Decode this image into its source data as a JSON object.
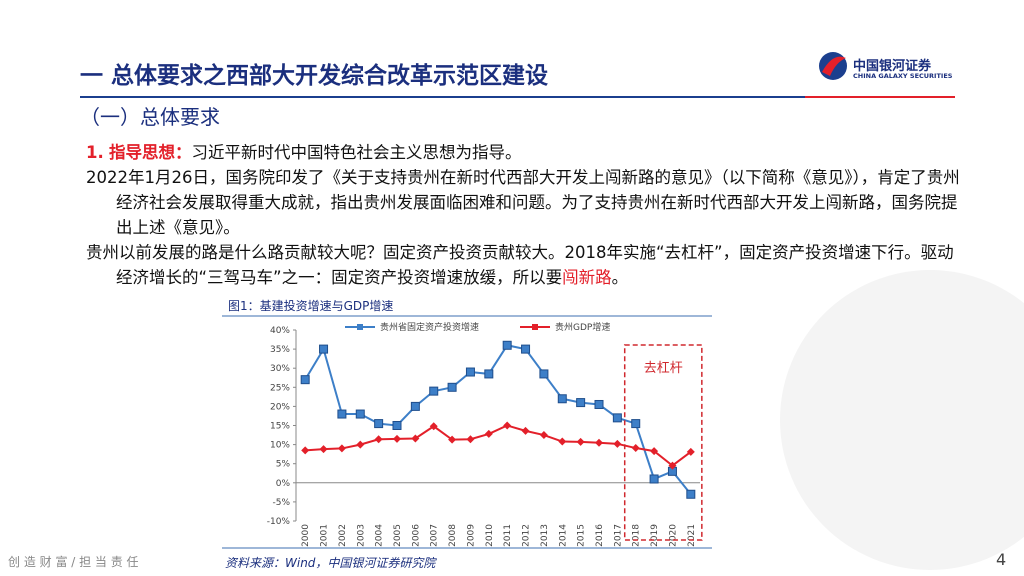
{
  "header": {
    "title": "一 总体要求之西部大开发综合改革示范区建设",
    "subtitle": "（一）总体要求"
  },
  "logo": {
    "name": "中国银河证券",
    "english": "CHINA GALAXY SECURITIES"
  },
  "points": [
    {
      "number": "1.",
      "label": "指导思想：",
      "text": "习近平新时代中国特色社会主义思想为指导。"
    },
    {
      "text": "2022年1月26日，国务院印发了《关于支持贵州在新时代西部大开发上闯新路的意见》（以下简称《意见》），肯定了贵州经济社会发展取得重大成就，指出贵州发展面临困难和问题。为了支持贵州在新时代西部大开发上闯新路，国务院提出上述《意见》。"
    },
    {
      "text": "贵州以前发展的路是什么路贡献较大呢？固定资产投资贡献较大。2018年实施“去杠杆”，固定资产投资增速下行。驱动经济增长的“三驾马车”之一：固定资产投资增速放缓，所以要",
      "highlight": "闯新路",
      "end": "。"
    }
  ],
  "footer": {
    "slogan": "创 造 财 富 / 担 当 责 任",
    "page": "4"
  },
  "chart_data": {
    "type": "line",
    "title": "图1：基建投资增速与GDP增速",
    "source": "资料来源：Wind，中国银河证券研究院",
    "annotation": "去杠杆",
    "categories": [
      "2000",
      "2001",
      "2002",
      "2003",
      "2004",
      "2005",
      "2006",
      "2007",
      "2008",
      "2009",
      "2010",
      "2011",
      "2012",
      "2013",
      "2014",
      "2015",
      "2016",
      "2017",
      "2018",
      "2019",
      "2020",
      "2021"
    ],
    "series": [
      {
        "name": "贵州省固定资产投资增速",
        "color": "#3d7fc8",
        "marker": "square",
        "values": [
          27,
          35,
          18,
          18,
          15.5,
          15,
          20,
          24,
          25,
          29,
          28.5,
          36,
          35,
          28.5,
          22,
          21,
          20.5,
          17,
          15.5,
          1,
          3,
          -3
        ]
      },
      {
        "name": "贵州GDP增速",
        "color": "#e3202a",
        "marker": "diamond",
        "values": [
          8.5,
          8.8,
          9,
          10,
          11.4,
          11.5,
          11.6,
          14.8,
          11.3,
          11.4,
          12.8,
          15,
          13.6,
          12.5,
          10.8,
          10.7,
          10.5,
          10.2,
          9.1,
          8.3,
          4.5,
          8.1
        ]
      }
    ],
    "ylim": [
      -10,
      40
    ],
    "yticks": [
      {
        "value": -10,
        "label": "-10%"
      },
      {
        "value": -5,
        "label": "-5%"
      },
      {
        "value": 0,
        "label": "0%"
      },
      {
        "value": 5,
        "label": "5%"
      },
      {
        "value": 10,
        "label": "10%"
      },
      {
        "value": 15,
        "label": "15%"
      },
      {
        "value": 20,
        "label": "20%"
      },
      {
        "value": 25,
        "label": "25%"
      },
      {
        "value": 30,
        "label": "30%"
      },
      {
        "value": 35,
        "label": "35%"
      },
      {
        "value": 40,
        "label": "40%"
      }
    ],
    "grid": false
  }
}
